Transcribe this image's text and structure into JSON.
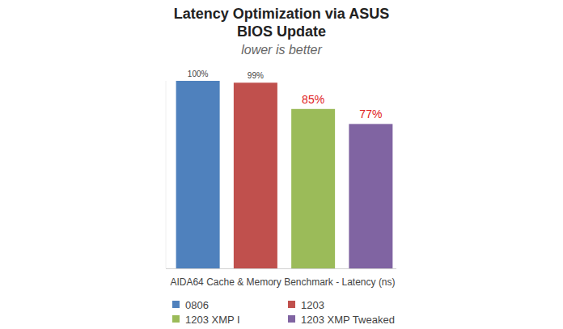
{
  "chart_data": {
    "type": "bar",
    "title": "Latency Optimization via ASUS BIOS Update",
    "subtitle": "lower is better",
    "x_label": "AIDA64 Cache & Memory Benchmark - Latency (ns)",
    "categories": [
      "0806",
      "1203",
      "1203 XMP I",
      "1203 XMP Tweaked"
    ],
    "values": [
      100,
      99,
      85,
      77
    ],
    "value_labels": [
      "100%",
      "99%",
      "85%",
      "77%"
    ],
    "colors": [
      "#4f81bd",
      "#c0504d",
      "#9bbb59",
      "#8064a2"
    ],
    "ylim": [
      0,
      100
    ],
    "grid": false,
    "data_labels": true,
    "tick_labels": false,
    "legend": "bottom"
  }
}
